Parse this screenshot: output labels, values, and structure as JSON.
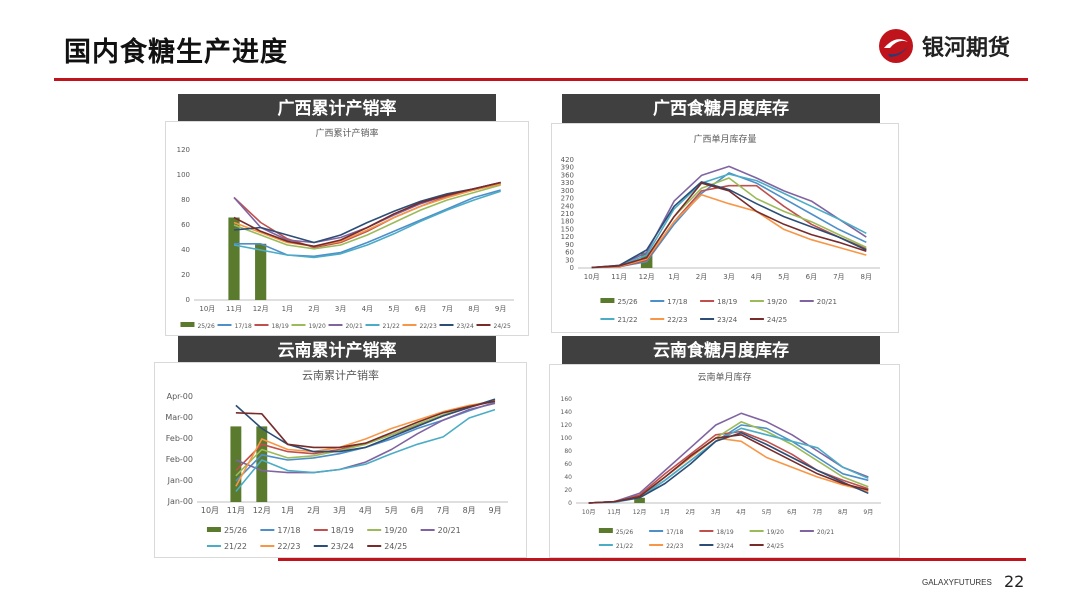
{
  "page": {
    "title": "国内食糖生产进度",
    "page_number": "22",
    "footer_brand": "GALAXYFUTURES",
    "logo_text": "银河期货"
  },
  "colors": {
    "accent": "#c0141c",
    "header_bg": "#404040"
  },
  "sections": {
    "gx_rate": "广西累计产销率",
    "gx_stock": "广西食糖月度库存",
    "yn_rate": "云南累计产销率",
    "yn_stock": "云南食糖月度库存"
  },
  "chart_data": [
    {
      "id": "gx_rate",
      "type": "line",
      "title": "广西累计产销率",
      "categories": [
        "10月",
        "11月",
        "12月",
        "1月",
        "2月",
        "3月",
        "4月",
        "5月",
        "6月",
        "7月",
        "8月",
        "9月"
      ],
      "yticks": [
        "0",
        "20",
        "40",
        "60",
        "80",
        "100",
        "120"
      ],
      "ylim": [
        0,
        120
      ],
      "legend_position": "bottom",
      "grid": false,
      "bar_series": {
        "name": "25/26",
        "color": "#5a7a2e",
        "values": [
          null,
          66,
          45,
          null,
          null,
          null,
          null,
          null,
          null,
          null,
          null,
          null
        ]
      },
      "series": [
        {
          "name": "17/18",
          "color": "#4e8fc9",
          "values": [
            null,
            45,
            45,
            36,
            35,
            38,
            46,
            55,
            64,
            73,
            82,
            88
          ]
        },
        {
          "name": "18/19",
          "color": "#c0504d",
          "values": [
            null,
            82,
            62,
            49,
            42,
            46,
            55,
            66,
            75,
            83,
            88,
            93
          ]
        },
        {
          "name": "19/20",
          "color": "#9bbb59",
          "values": [
            null,
            60,
            52,
            44,
            41,
            44,
            52,
            62,
            72,
            80,
            86,
            92
          ]
        },
        {
          "name": "20/21",
          "color": "#8064a2",
          "values": [
            null,
            82,
            58,
            48,
            46,
            50,
            58,
            68,
            77,
            84,
            89,
            94
          ]
        },
        {
          "name": "21/22",
          "color": "#4bacc6",
          "values": [
            null,
            44,
            40,
            36,
            34,
            37,
            44,
            53,
            63,
            72,
            80,
            87
          ]
        },
        {
          "name": "22/23",
          "color": "#f79646",
          "values": [
            null,
            62,
            54,
            46,
            43,
            47,
            56,
            66,
            75,
            82,
            88,
            93
          ]
        },
        {
          "name": "23/24",
          "color": "#2c4d75",
          "values": [
            null,
            56,
            58,
            52,
            46,
            52,
            62,
            71,
            79,
            85,
            89,
            94
          ]
        },
        {
          "name": "24/25",
          "color": "#772c2a",
          "values": [
            null,
            66,
            55,
            47,
            43,
            48,
            58,
            69,
            78,
            84,
            89,
            94
          ]
        }
      ]
    },
    {
      "id": "gx_stock",
      "type": "line",
      "title": "广西单月库存量",
      "categories": [
        "10月",
        "11月",
        "12月",
        "1月",
        "2月",
        "3月",
        "4月",
        "5月",
        "6月",
        "7月",
        "8月"
      ],
      "yticks": [
        "0",
        "30",
        "60",
        "90",
        "120",
        "150",
        "180",
        "210",
        "240",
        "270",
        "300",
        "330",
        "360",
        "390",
        "420"
      ],
      "ylim": [
        0,
        420
      ],
      "legend_position": "bottom",
      "grid": false,
      "bar_series": {
        "name": "25/26",
        "color": "#5a7a2e",
        "values": [
          null,
          null,
          60,
          null,
          null,
          null,
          null,
          null,
          null,
          null,
          null
        ]
      },
      "series": [
        {
          "name": "17/18",
          "color": "#4e8fc9",
          "values": [
            2,
            5,
            25,
            170,
            290,
            370,
            330,
            270,
            210,
            150,
            100
          ]
        },
        {
          "name": "18/19",
          "color": "#c0504d",
          "values": [
            2,
            5,
            30,
            180,
            300,
            320,
            320,
            240,
            170,
            120,
            75
          ]
        },
        {
          "name": "19/20",
          "color": "#9bbb59",
          "values": [
            2,
            8,
            40,
            200,
            310,
            350,
            270,
            220,
            180,
            130,
            80
          ]
        },
        {
          "name": "20/21",
          "color": "#8064a2",
          "values": [
            2,
            10,
            60,
            260,
            360,
            395,
            350,
            300,
            260,
            190,
            120
          ]
        },
        {
          "name": "21/22",
          "color": "#4bacc6",
          "values": [
            2,
            8,
            50,
            230,
            330,
            365,
            340,
            290,
            240,
            190,
            135
          ]
        },
        {
          "name": "22/23",
          "color": "#f79646",
          "values": [
            2,
            6,
            35,
            180,
            285,
            250,
            220,
            150,
            110,
            80,
            50
          ]
        },
        {
          "name": "23/24",
          "color": "#2c4d75",
          "values": [
            2,
            10,
            70,
            240,
            335,
            305,
            250,
            200,
            160,
            120,
            70
          ]
        },
        {
          "name": "24/25",
          "color": "#772c2a",
          "values": [
            2,
            8,
            40,
            200,
            330,
            300,
            220,
            170,
            130,
            100,
            65
          ]
        }
      ]
    },
    {
      "id": "yn_rate",
      "type": "line",
      "title": "云南累计产销率",
      "categories": [
        "10月",
        "11月",
        "12月",
        "1月",
        "2月",
        "3月",
        "4月",
        "5月",
        "6月",
        "7月",
        "8月",
        "9月"
      ],
      "yticks": [
        "Jan-00",
        "Jan-00",
        "Feb-00",
        "Feb-00",
        "Mar-00",
        "Apr-00"
      ],
      "ylim": [
        0,
        100
      ],
      "legend_position": "bottom",
      "grid": false,
      "bar_series": {
        "name": "25/26",
        "color": "#5a7a2e",
        "values": [
          null,
          72,
          72,
          null,
          null,
          null,
          null,
          null,
          null,
          null,
          null,
          null
        ]
      },
      "series": [
        {
          "name": "17/18",
          "color": "#4e8fc9",
          "values": [
            null,
            20,
            45,
            40,
            42,
            46,
            52,
            60,
            70,
            78,
            87,
            95
          ]
        },
        {
          "name": "18/19",
          "color": "#c0504d",
          "values": [
            null,
            30,
            55,
            48,
            46,
            50,
            56,
            64,
            73,
            82,
            90,
            97
          ]
        },
        {
          "name": "19/20",
          "color": "#9bbb59",
          "values": [
            null,
            25,
            50,
            42,
            44,
            49,
            55,
            64,
            74,
            83,
            91,
            97
          ]
        },
        {
          "name": "20/21",
          "color": "#8064a2",
          "values": [
            null,
            40,
            30,
            28,
            28,
            31,
            38,
            50,
            65,
            78,
            88,
            94
          ]
        },
        {
          "name": "21/22",
          "color": "#4bacc6",
          "values": [
            null,
            10,
            40,
            30,
            28,
            31,
            36,
            46,
            55,
            62,
            80,
            88
          ]
        },
        {
          "name": "22/23",
          "color": "#f79646",
          "values": [
            null,
            15,
            60,
            50,
            48,
            52,
            60,
            70,
            78,
            86,
            92,
            96
          ]
        },
        {
          "name": "23/24",
          "color": "#2c4d75",
          "values": [
            null,
            92,
            70,
            55,
            48,
            48,
            52,
            62,
            72,
            82,
            90,
            98
          ]
        },
        {
          "name": "24/25",
          "color": "#772c2a",
          "values": [
            null,
            85,
            84,
            55,
            52,
            52,
            56,
            66,
            76,
            85,
            91,
            96
          ]
        }
      ]
    },
    {
      "id": "yn_stock",
      "type": "line",
      "title": "云南单月库存",
      "categories": [
        "10月",
        "11月",
        "12月",
        "1月",
        "2月",
        "3月",
        "4月",
        "5月",
        "6月",
        "7月",
        "8月",
        "9月"
      ],
      "yticks": [
        "0",
        "20",
        "40",
        "60",
        "80",
        "100",
        "120",
        "140",
        "160"
      ],
      "ylim": [
        0,
        160
      ],
      "legend_position": "bottom",
      "grid": false,
      "bar_series": {
        "name": "25/26",
        "color": "#5a7a2e",
        "values": [
          null,
          null,
          8,
          null,
          null,
          null,
          null,
          null,
          null,
          null,
          null,
          null
        ]
      },
      "series": [
        {
          "name": "17/18",
          "color": "#4e8fc9",
          "values": [
            0,
            2,
            10,
            35,
            65,
            95,
            120,
            115,
            95,
            70,
            45,
            35
          ]
        },
        {
          "name": "18/19",
          "color": "#c0504d",
          "values": [
            0,
            2,
            12,
            45,
            75,
            105,
            110,
            95,
            75,
            50,
            35,
            22
          ]
        },
        {
          "name": "19/20",
          "color": "#9bbb59",
          "values": [
            0,
            2,
            10,
            40,
            70,
            100,
            125,
            110,
            90,
            65,
            40,
            25
          ]
        },
        {
          "name": "20/21",
          "color": "#8064a2",
          "values": [
            0,
            2,
            15,
            50,
            85,
            120,
            138,
            125,
            105,
            80,
            55,
            40
          ]
        },
        {
          "name": "21/22",
          "color": "#4bacc6",
          "values": [
            0,
            1,
            8,
            35,
            65,
            95,
            115,
            105,
            95,
            85,
            55,
            38
          ]
        },
        {
          "name": "22/23",
          "color": "#f79646",
          "values": [
            0,
            2,
            10,
            40,
            70,
            100,
            95,
            70,
            55,
            40,
            28,
            18
          ]
        },
        {
          "name": "23/24",
          "color": "#2c4d75",
          "values": [
            0,
            2,
            8,
            30,
            60,
            95,
            108,
            90,
            70,
            50,
            32,
            15
          ]
        },
        {
          "name": "24/25",
          "color": "#772c2a",
          "values": [
            0,
            2,
            10,
            40,
            72,
            100,
            105,
            85,
            65,
            45,
            30,
            20
          ]
        }
      ]
    }
  ]
}
